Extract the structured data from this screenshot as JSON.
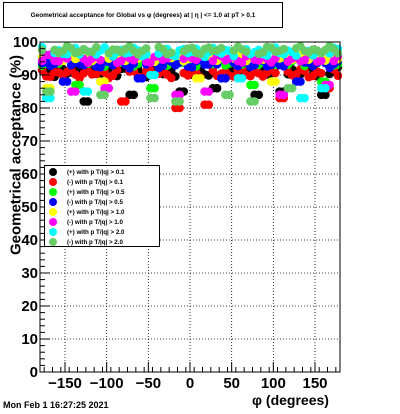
{
  "title": "Geometrical acceptance for Global vs φ (degrees) at | η | <= 1.0 at pT > 0.1",
  "timestamp": "Mon Feb  1 16:27:25 2021",
  "chart_data": {
    "type": "scatter",
    "title": "Geometrical acceptance for Global vs φ (degrees) at | η | <= 1.0 at pT > 0.1",
    "xlabel": "φ (degrees)",
    "ylabel": "Geometrical acceptance (%)",
    "xlim": [
      -180,
      180
    ],
    "ylim": [
      0,
      100
    ],
    "x_ticks": [
      -150,
      -100,
      -50,
      0,
      50,
      100,
      150
    ],
    "y_ticks": [
      0,
      10,
      20,
      30,
      40,
      50,
      60,
      70,
      80,
      90,
      100
    ],
    "x_tick_labels": [
      "−150",
      "−100",
      "−50",
      "0",
      "50",
      "100",
      "150"
    ],
    "y_tick_labels": [
      "0",
      "10",
      "20",
      "30",
      "40",
      "50",
      "60",
      "70",
      "80",
      "90",
      "100"
    ],
    "grid": true,
    "legend_position": "middle-left",
    "x_bins": {
      "start": -177.5,
      "step": 5,
      "count": 72
    },
    "series": [
      {
        "name": "(+) with p T/|q| > 0.1",
        "color": "#000000",
        "base": 91,
        "spread": 1.2,
        "dips": [
          [
            -125,
            82
          ],
          [
            -70,
            84
          ],
          [
            -10,
            85
          ],
          [
            30,
            86
          ],
          [
            80,
            84
          ],
          [
            110,
            85
          ],
          [
            160,
            84
          ]
        ]
      },
      {
        "name": "(-) with p T/|q| > 0.1",
        "color": "#ff0000",
        "base": 90.5,
        "spread": 1.0,
        "dips": [
          [
            -80,
            82
          ],
          [
            -15,
            80
          ],
          [
            20,
            81
          ],
          [
            110,
            83
          ],
          [
            165,
            86
          ]
        ]
      },
      {
        "name": "(+) with p T/|q| > 0.5",
        "color": "#00ff00",
        "base": 94,
        "spread": 1.0,
        "dips": [
          [
            -135,
            87
          ],
          [
            -45,
            86
          ],
          [
            75,
            87
          ],
          [
            160,
            88
          ]
        ]
      },
      {
        "name": "(-) with p T/|q| > 0.5",
        "color": "#0000ff",
        "base": 93.5,
        "spread": 1.0,
        "dips": [
          [
            -150,
            88
          ],
          [
            -60,
            89
          ],
          [
            40,
            89
          ],
          [
            130,
            88
          ]
        ]
      },
      {
        "name": "(+) with p T/|q| > 1.0",
        "color": "#ffff00",
        "base": 95.5,
        "spread": 1.0,
        "dips": [
          [
            -170,
            86
          ],
          [
            -105,
            88
          ],
          [
            10,
            89
          ],
          [
            100,
            88
          ]
        ]
      },
      {
        "name": "(-) with p T/|q| > 1.0",
        "color": "#ff00ff",
        "base": 95,
        "spread": 1.0,
        "dips": [
          [
            -140,
            85
          ],
          [
            -100,
            86
          ],
          [
            -15,
            84
          ],
          [
            20,
            85
          ],
          [
            110,
            84
          ],
          [
            165,
            87
          ]
        ]
      },
      {
        "name": "(+) with p T/|q| > 2.0",
        "color": "#00ffff",
        "base": 97,
        "spread": 1.0,
        "dips": [
          [
            -170,
            83
          ],
          [
            -125,
            85
          ],
          [
            -45,
            90
          ],
          [
            60,
            89
          ],
          [
            135,
            83
          ],
          [
            160,
            86
          ]
        ]
      },
      {
        "name": "(-) with p T/|q| > 2.0",
        "color": "#66cc66",
        "base": 97.5,
        "spread": 0.8,
        "dips": [
          [
            -170,
            85
          ],
          [
            -105,
            84
          ],
          [
            -45,
            83
          ],
          [
            -15,
            82
          ],
          [
            45,
            84
          ],
          [
            75,
            82
          ],
          [
            120,
            86
          ]
        ]
      }
    ]
  }
}
